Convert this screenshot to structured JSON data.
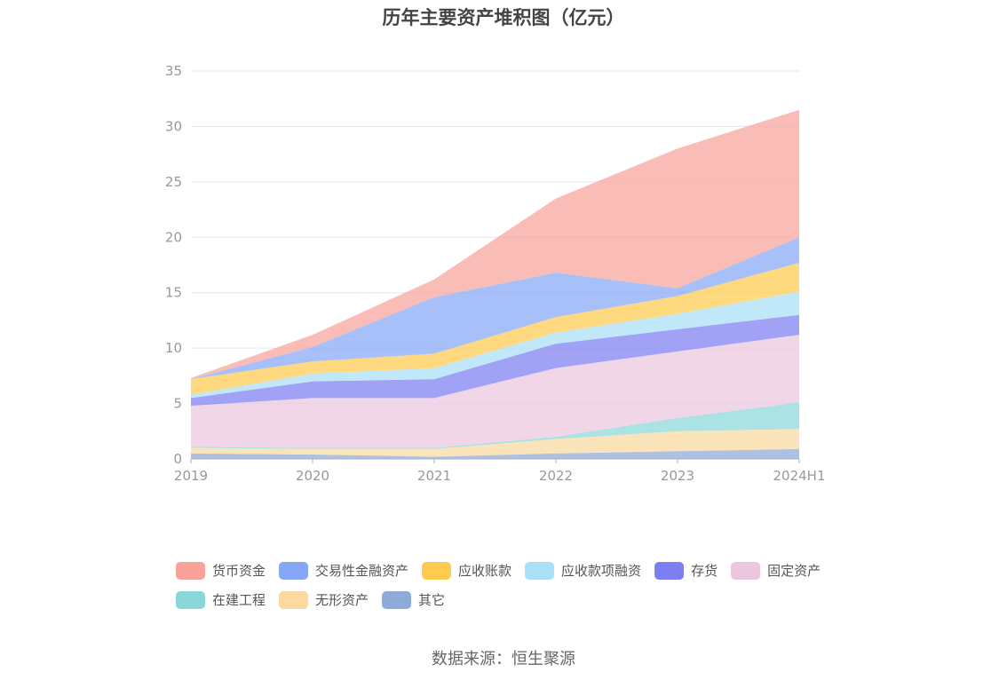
{
  "title": "历年主要资产堆积图（亿元）",
  "source": "数据来源：恒生聚源",
  "chart_data": {
    "type": "area",
    "stacked": true,
    "title": "历年主要资产堆积图（亿元）",
    "categories": [
      "2019",
      "2020",
      "2021",
      "2022",
      "2023",
      "2024H1"
    ],
    "ylim": [
      0,
      35
    ],
    "yticks": [
      0,
      5,
      10,
      15,
      20,
      25,
      30,
      35
    ],
    "grid": true,
    "legend_position": "bottom",
    "series": [
      {
        "name": "其它",
        "color": "#8eabd8",
        "values": [
          0.5,
          0.4,
          0.2,
          0.5,
          0.7,
          0.9
        ]
      },
      {
        "name": "无形资产",
        "color": "#fbd9a0",
        "values": [
          0.5,
          0.5,
          0.7,
          1.3,
          1.8,
          1.8
        ]
      },
      {
        "name": "在建工程",
        "color": "#8ad7d9",
        "values": [
          0.1,
          0.1,
          0.1,
          0.2,
          1.2,
          2.4
        ]
      },
      {
        "name": "固定资产",
        "color": "#ebc6de",
        "values": [
          3.7,
          4.5,
          4.5,
          6.2,
          6.0,
          6.1
        ]
      },
      {
        "name": "存货",
        "color": "#7d7ef2",
        "values": [
          0.7,
          1.5,
          1.7,
          2.2,
          2.0,
          1.8
        ]
      },
      {
        "name": "应收款项融资",
        "color": "#a9dff7",
        "values": [
          0.3,
          0.7,
          1.0,
          1.0,
          1.4,
          2.1
        ]
      },
      {
        "name": "应收账款",
        "color": "#fecb4f",
        "values": [
          1.4,
          1.1,
          1.3,
          1.4,
          1.6,
          2.6
        ]
      },
      {
        "name": "交易性金融资产",
        "color": "#86a7f6",
        "values": [
          0.0,
          1.3,
          5.1,
          4.0,
          0.7,
          2.3
        ]
      },
      {
        "name": "货币资金",
        "color": "#f8a29a",
        "values": [
          0.1,
          1.1,
          1.6,
          6.7,
          12.6,
          11.5
        ]
      }
    ],
    "legend_order": [
      "货币资金",
      "交易性金融资产",
      "应收账款",
      "应收款项融资",
      "存货",
      "固定资产",
      "在建工程",
      "无形资产",
      "其它"
    ]
  }
}
